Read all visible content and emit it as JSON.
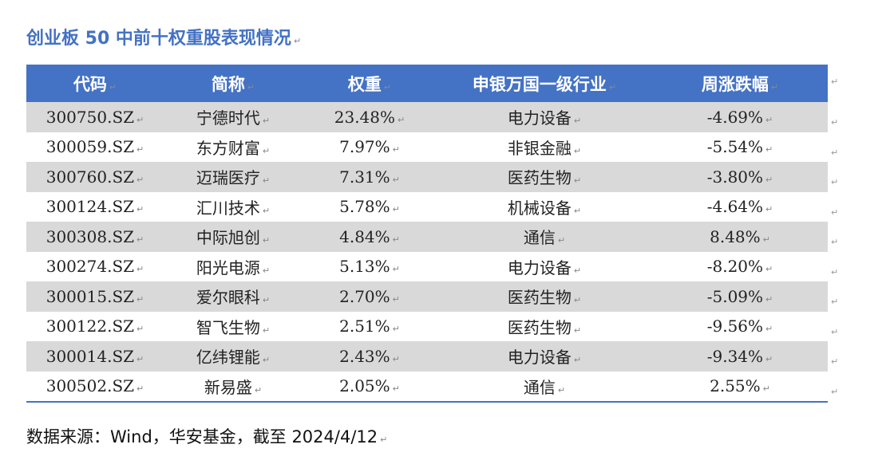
{
  "title": "创业板 50 中前十权重股表现情况",
  "header": [
    "代码",
    "简称",
    "权重",
    "申银万国一级行业",
    "周涨跌幅"
  ],
  "rows": [
    [
      "300750.SZ",
      "宁德时代",
      "23.48%",
      "电力设备",
      "-4.69%"
    ],
    [
      "300059.SZ",
      "东方财富",
      "7.97%",
      "非银金融",
      "-5.54%"
    ],
    [
      "300760.SZ",
      "迈瑞医疗",
      "7.31%",
      "医药生物",
      "-3.80%"
    ],
    [
      "300124.SZ",
      "汇川技术",
      "5.78%",
      "机械设备",
      "-4.64%"
    ],
    [
      "300308.SZ",
      "中际旭创",
      "4.84%",
      "通信",
      "8.48%"
    ],
    [
      "300274.SZ",
      "阳光电源",
      "5.13%",
      "电力设备",
      "-8.20%"
    ],
    [
      "300015.SZ",
      "爱尔眼科",
      "2.70%",
      "医药生物",
      "-5.09%"
    ],
    [
      "300122.SZ",
      "智飞生物",
      "2.51%",
      "医药生物",
      "-9.56%"
    ],
    [
      "300014.SZ",
      "亿纬锂能",
      "2.43%",
      "电力设备",
      "-9.34%"
    ],
    [
      "300502.SZ",
      "新易盛",
      "2.05%",
      "通信",
      "2.55%"
    ]
  ],
  "source": "数据来源：Wind，华安基金，截至 2024/4/12",
  "colors": {
    "header_bg": "#4472c4",
    "band_bg": "#d9d9d9",
    "title": "#4472c4"
  }
}
